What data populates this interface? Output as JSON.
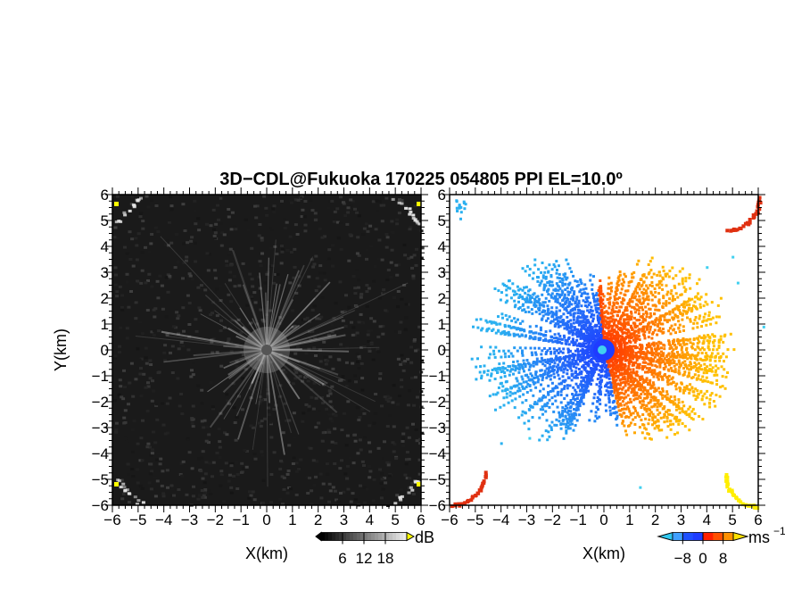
{
  "title": "3D−CDL@Fukuoka 170225 054805 PPI EL=10.0º",
  "chart_data": [
    {
      "type": "heatmap",
      "panel": "reflectivity",
      "xlabel": "X(km)",
      "ylabel": "Y(km)",
      "xlim": [
        -6,
        6
      ],
      "ylim": [
        -6,
        6
      ],
      "xticks": [
        "−6",
        "−5",
        "−4",
        "−3",
        "−2",
        "−1",
        "0",
        "1",
        "2",
        "3",
        "4",
        "5",
        "6"
      ],
      "yticks": [
        "−6",
        "−5",
        "−4",
        "−3",
        "−2",
        "−1",
        "0",
        "1",
        "2",
        "3",
        "4",
        "5",
        "6"
      ],
      "colorbar": {
        "unit": "dB",
        "ticks": [
          "6",
          "12",
          "18"
        ],
        "range": [
          0,
          24
        ]
      },
      "colors": {
        "background": "#1a1a1a",
        "rays": "#c8c8c8",
        "corner_clutter": "#e6e6e6",
        "corner_hot": "#ffff00"
      }
    },
    {
      "type": "heatmap",
      "panel": "doppler_velocity",
      "xlabel": "X(km)",
      "ylabel": "",
      "xlim": [
        -6,
        6
      ],
      "ylim": [
        -6,
        6
      ],
      "xticks": [
        "−6",
        "−5",
        "−4",
        "−3",
        "−2",
        "−1",
        "0",
        "1",
        "2",
        "3",
        "4",
        "5",
        "6"
      ],
      "yticks": [
        "−6",
        "−5",
        "−4",
        "−3",
        "−2",
        "−1",
        "0",
        "1",
        "2",
        "3",
        "4",
        "5",
        "6"
      ],
      "colorbar": {
        "unit": "ms",
        "unit_sup": "−1",
        "ticks": [
          "−8",
          "0",
          "8"
        ],
        "range": [
          -12,
          12
        ]
      },
      "colors": {
        "approach": "#1e3cff",
        "approach_far": "#2ab0f0",
        "recede": "#ff3000",
        "recede_far": "#ffc000",
        "corner_red": "#e03010",
        "corner_yellow": "#ffee00",
        "cyan": "#40d0f0"
      }
    }
  ]
}
